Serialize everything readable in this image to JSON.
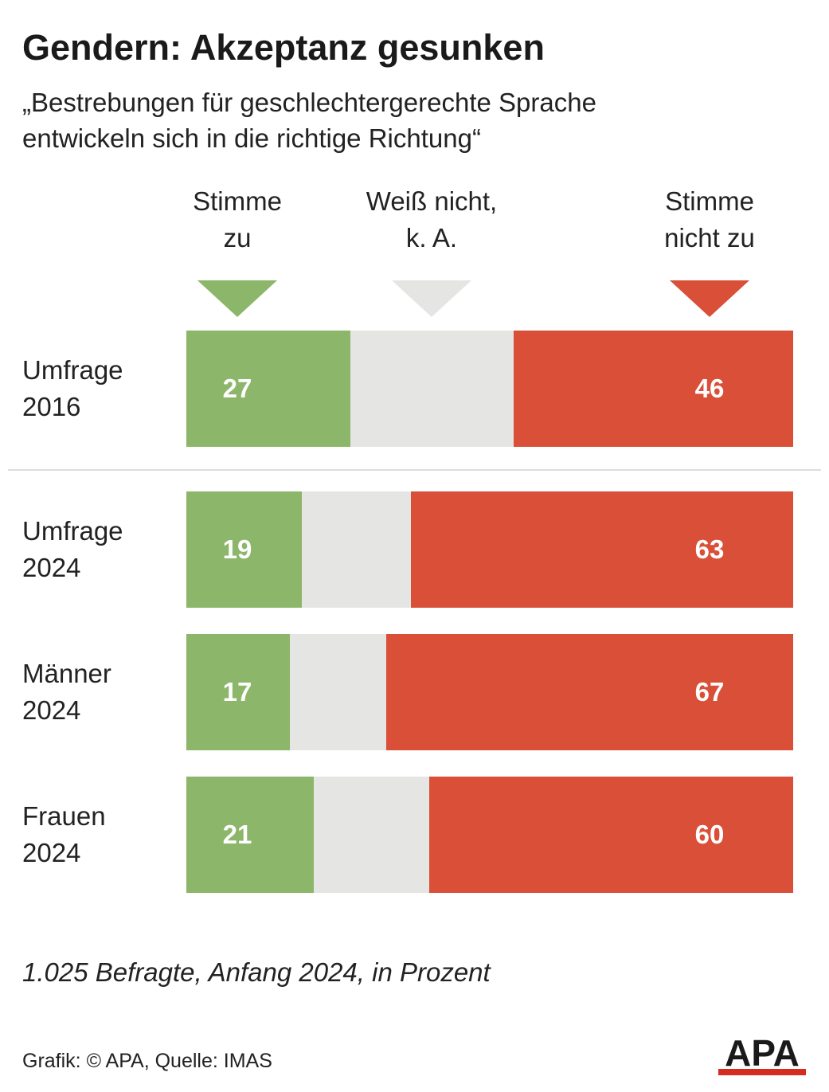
{
  "title": "Gendern: Akzeptanz gesunken",
  "subtitle": {
    "line1": "„Bestrebungen für geschlechtergerechte Sprache",
    "line2": "entwickeln sich in die richtige Richtung“"
  },
  "legend": {
    "agree": {
      "line1": "Stimme",
      "line2": "zu"
    },
    "unknown": {
      "line1": "Weiß nicht,",
      "line2": "k. A."
    },
    "disagree": {
      "line1": "Stimme",
      "line2": "nicht zu"
    }
  },
  "colors": {
    "agree": "#8cb669",
    "unknown": "#e5e5e4",
    "disagree": "#d94f37",
    "divider": "#dddddd",
    "logo": "#1a1a1a",
    "logo_accent": "#d62b1f"
  },
  "chart_data": {
    "type": "bar",
    "orientation": "horizontal",
    "stacked": true,
    "categories": [
      "Umfrage 2016",
      "Umfrage 2024",
      "Männer 2024",
      "Frauen 2024"
    ],
    "category_lines": [
      [
        "Umfrage",
        "2016"
      ],
      [
        "Umfrage",
        "2024"
      ],
      [
        "Männer",
        "2024"
      ],
      [
        "Frauen",
        "2024"
      ]
    ],
    "series": [
      {
        "name": "Stimme zu",
        "values": [
          27,
          19,
          17,
          21
        ]
      },
      {
        "name": "Weiß nicht, k. A.",
        "values": [
          27,
          18,
          16,
          19
        ]
      },
      {
        "name": "Stimme nicht zu",
        "values": [
          46,
          63,
          67,
          60
        ]
      }
    ],
    "labeled_series": [
      "Stimme zu",
      "Stimme nicht zu"
    ],
    "xlim": [
      0,
      100
    ],
    "unit": "Prozent",
    "legend_position": "top",
    "grid": false
  },
  "footnote": "1.025 Befragte, Anfang 2024, in Prozent",
  "source": "Grafik: © APA, Quelle: IMAS",
  "logo_text": "APA"
}
